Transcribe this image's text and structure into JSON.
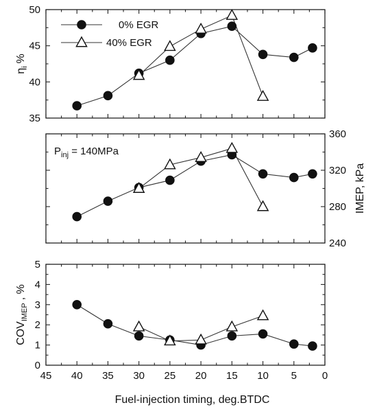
{
  "chart_data": [
    {
      "type": "line",
      "panel": "top",
      "ylabel_main": "η",
      "ylabel_sub": "i",
      "ylabel_unit": "%",
      "ylim": [
        35,
        50
      ],
      "yticks": [
        35,
        40,
        45,
        50
      ],
      "xlim": [
        45,
        0
      ],
      "legend": [
        {
          "label": "0% EGR",
          "marker": "filled-circle"
        },
        {
          "label": "40% EGR",
          "marker": "open-triangle"
        }
      ],
      "legend_position": "top-left",
      "series": [
        {
          "name": "0% EGR",
          "marker": "filled-circle",
          "x": [
            40,
            35,
            30,
            25,
            20,
            15,
            10,
            5,
            2
          ],
          "y": [
            36.7,
            38.1,
            41.2,
            43.0,
            46.7,
            47.7,
            43.8,
            43.4,
            44.7
          ]
        },
        {
          "name": "40% EGR",
          "marker": "open-triangle",
          "x": [
            30,
            25,
            20,
            15,
            10
          ],
          "y": [
            40.9,
            44.9,
            47.3,
            49.2,
            38.0
          ]
        }
      ]
    },
    {
      "type": "line",
      "panel": "middle",
      "annotation_main": "P",
      "annotation_sub": "inj",
      "annotation_value": " = 140MPa",
      "ylabel_main": "IMEP",
      "ylabel_unit": ", kPa",
      "y_axis_side": "right",
      "ylim": [
        240,
        360
      ],
      "yticks": [
        240,
        280,
        320,
        360
      ],
      "xlim": [
        45,
        0
      ],
      "series": [
        {
          "name": "0% EGR",
          "marker": "filled-circle",
          "x": [
            40,
            35,
            30,
            25,
            20,
            15,
            10,
            5,
            2
          ],
          "y": [
            269,
            286,
            301,
            309,
            330,
            337,
            316,
            312,
            316
          ]
        },
        {
          "name": "40% EGR",
          "marker": "open-triangle",
          "x": [
            30,
            25,
            20,
            15,
            10
          ],
          "y": [
            300,
            326,
            334,
            344,
            280
          ]
        }
      ]
    },
    {
      "type": "line",
      "panel": "bottom",
      "ylabel_main": "COV",
      "ylabel_sub": "IMEP",
      "ylabel_unit": ", %",
      "ylim": [
        0,
        5
      ],
      "yticks": [
        0,
        1,
        2,
        3,
        4,
        5
      ],
      "xlabel": "Fuel-injection timing, deg.BTDC",
      "xlim": [
        45,
        0
      ],
      "xticks": [
        45,
        40,
        35,
        30,
        25,
        20,
        15,
        10,
        5,
        0
      ],
      "series": [
        {
          "name": "0% EGR",
          "marker": "filled-circle",
          "x": [
            40,
            35,
            30,
            25,
            20,
            15,
            10,
            5,
            2
          ],
          "y": [
            3.0,
            2.05,
            1.45,
            1.25,
            1.0,
            1.45,
            1.55,
            1.05,
            0.95
          ]
        },
        {
          "name": "40% EGR",
          "marker": "open-triangle",
          "x": [
            30,
            25,
            20,
            15,
            10
          ],
          "y": [
            1.9,
            1.2,
            1.25,
            1.9,
            2.45
          ]
        }
      ]
    }
  ]
}
